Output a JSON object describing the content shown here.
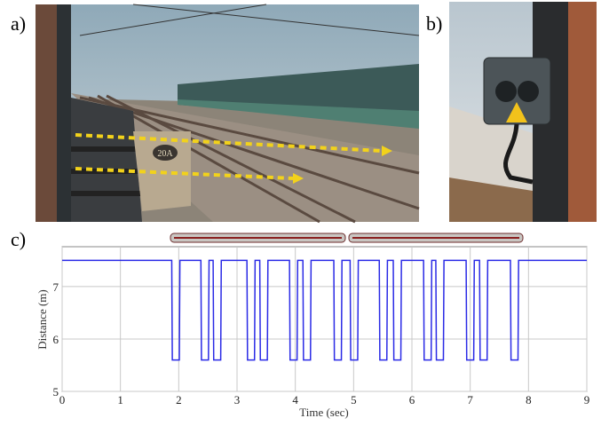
{
  "panels": {
    "a": {
      "label": "a)",
      "sign": "20A"
    },
    "b": {
      "label": "b)"
    },
    "c": {
      "label": "c)"
    }
  },
  "chart_data": {
    "type": "line",
    "xlabel": "Time (sec)",
    "ylabel": "Distance (m)",
    "xlim": [
      0,
      9
    ],
    "ylim": [
      5,
      7.76
    ],
    "xticks": [
      0,
      1,
      2,
      3,
      4,
      5,
      6,
      7,
      8,
      9
    ],
    "yticks": [
      5,
      6,
      7
    ],
    "grid": true,
    "x": [
      0,
      1.88,
      1.89,
      2.01,
      2.02,
      2.38,
      2.39,
      2.51,
      2.52,
      2.59,
      2.6,
      2.72,
      2.73,
      3.17,
      3.18,
      3.3,
      3.31,
      3.39,
      3.4,
      3.52,
      3.53,
      3.9,
      3.91,
      4.03,
      4.04,
      4.13,
      4.14,
      4.26,
      4.27,
      4.66,
      4.67,
      4.79,
      4.8,
      4.94,
      4.95,
      5.07,
      5.08,
      5.44,
      5.45,
      5.57,
      5.58,
      5.68,
      5.69,
      5.81,
      5.82,
      6.2,
      6.21,
      6.33,
      6.34,
      6.41,
      6.42,
      6.54,
      6.55,
      6.93,
      6.94,
      7.06,
      7.07,
      7.16,
      7.17,
      7.29,
      7.3,
      7.69,
      7.7,
      7.82,
      7.83,
      9
    ],
    "series": [
      {
        "color": "#2a2ae6",
        "values": [
          7.5,
          7.5,
          5.6,
          5.6,
          7.5,
          7.5,
          5.6,
          5.6,
          7.5,
          7.5,
          5.6,
          5.6,
          7.5,
          7.5,
          5.6,
          5.6,
          7.5,
          7.5,
          5.6,
          5.6,
          7.5,
          7.5,
          5.6,
          5.6,
          7.5,
          7.5,
          5.6,
          5.6,
          7.5,
          7.5,
          5.6,
          5.6,
          7.5,
          7.5,
          5.6,
          5.6,
          7.5,
          7.5,
          5.6,
          5.6,
          7.5,
          7.5,
          5.6,
          5.6,
          7.5,
          7.5,
          5.6,
          5.6,
          7.5,
          7.5,
          5.6,
          5.6,
          7.5,
          7.5,
          5.6,
          5.6,
          7.5,
          7.5,
          5.6,
          5.6,
          7.5,
          7.5,
          5.6,
          5.6,
          7.5,
          7.5
        ]
      }
    ]
  }
}
